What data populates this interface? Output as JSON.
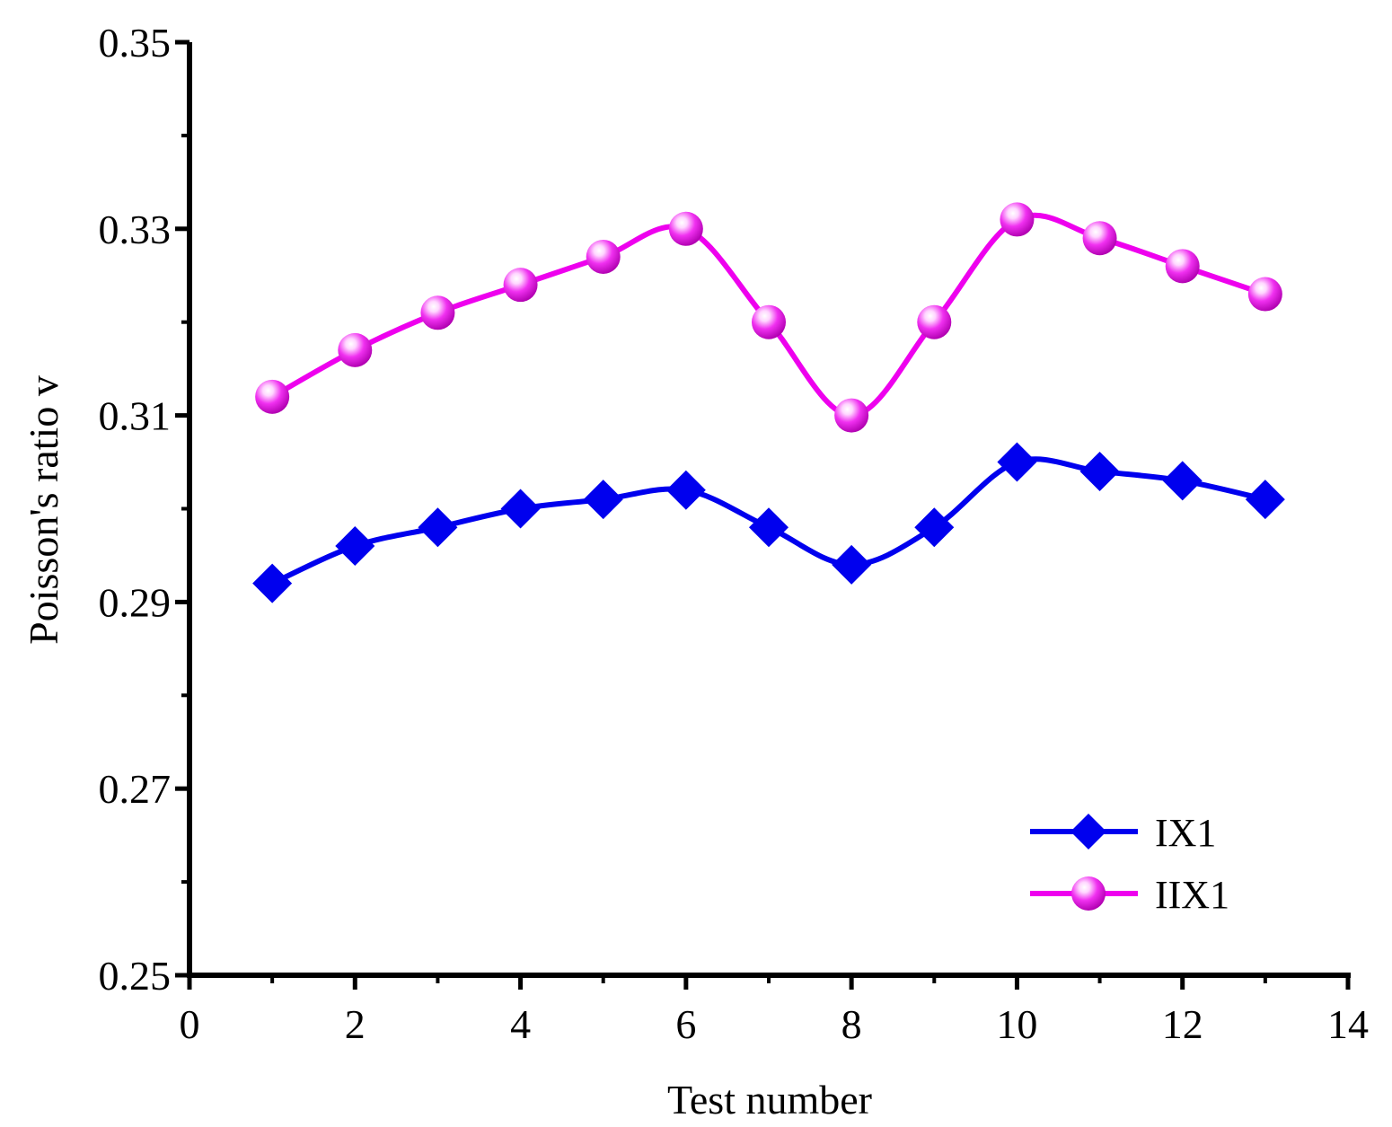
{
  "chart_data": {
    "type": "line",
    "title": "",
    "xlabel": "Test number",
    "ylabel": "Poisson's ratio v",
    "xlim": [
      0,
      14
    ],
    "ylim": [
      0.25,
      0.35
    ],
    "xticks": [
      0,
      2,
      4,
      6,
      8,
      10,
      12,
      14
    ],
    "xtick_labels": [
      "0",
      "2",
      "4",
      "6",
      "8",
      "10",
      "12",
      "14"
    ],
    "yticks": [
      0.25,
      0.27,
      0.29,
      0.31,
      0.33,
      0.35
    ],
    "ytick_labels": [
      "0.25",
      "0.27",
      "0.29",
      "0.31",
      "0.33",
      "0.35"
    ],
    "grid": false,
    "legend_position": "bottom-right",
    "x": [
      1,
      2,
      3,
      4,
      5,
      6,
      7,
      8,
      9,
      10,
      11,
      12,
      13
    ],
    "series": [
      {
        "name": "IX1",
        "color": "#0000ee",
        "marker": "diamond",
        "values": [
          0.292,
          0.296,
          0.298,
          0.3,
          0.301,
          0.302,
          0.298,
          0.294,
          0.298,
          0.305,
          0.304,
          0.303,
          0.301
        ]
      },
      {
        "name": "IIX1",
        "color": "#ee00ee",
        "marker": "sphere",
        "values": [
          0.312,
          0.317,
          0.321,
          0.324,
          0.327,
          0.33,
          0.32,
          0.31,
          0.32,
          0.331,
          0.329,
          0.326,
          0.323
        ]
      }
    ]
  }
}
